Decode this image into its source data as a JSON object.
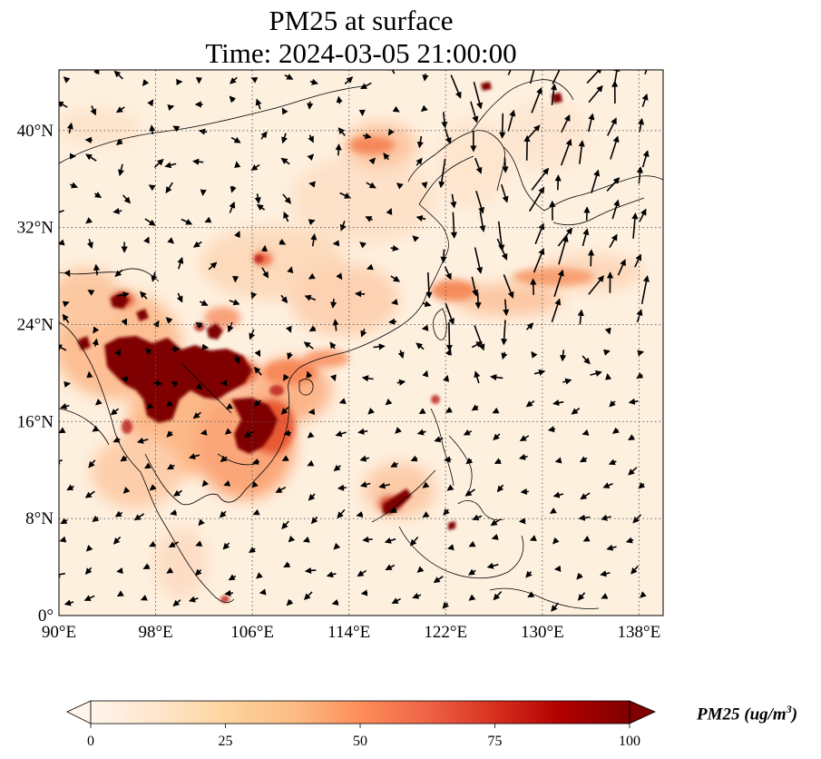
{
  "title": "PM25 at surface",
  "subtitle": "Time: 2024-03-05 21:00:00",
  "map": {
    "lon_range": [
      90,
      140
    ],
    "lat_range": [
      0,
      45
    ],
    "lon_ticks": [
      "90°E",
      "98°E",
      "106°E",
      "114°E",
      "122°E",
      "130°E",
      "138°E"
    ],
    "lat_ticks": [
      "0°",
      "8°N",
      "16°N",
      "24°N",
      "32°N",
      "40°N"
    ],
    "gridlines": "dotted",
    "variable": "PM25 concentration with wind vectors"
  },
  "colorbar": {
    "label": "PM25 (ug/m",
    "label_sup": "3",
    "label_end": ")",
    "ticks": [
      "0",
      "25",
      "50",
      "75",
      "100"
    ],
    "min": 0,
    "max": 100,
    "colormap": [
      "#fff5eb",
      "#fee6ce",
      "#fdd0a2",
      "#fdae6b",
      "#fd8d3c",
      "#f16913",
      "#d94801",
      "#a63603",
      "#7f0000"
    ],
    "extend": "both"
  }
}
